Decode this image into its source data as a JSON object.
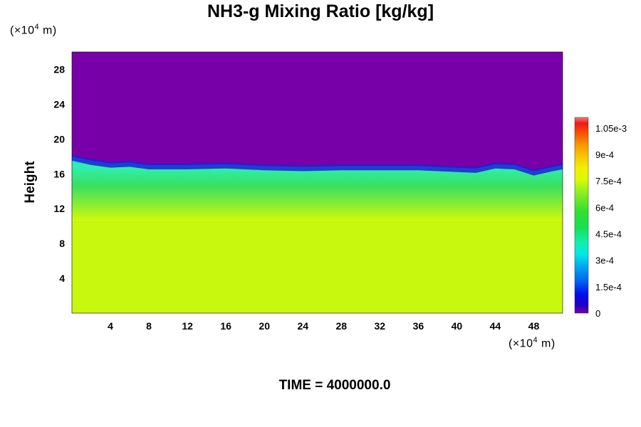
{
  "chart_data": {
    "type": "heatmap",
    "title": "NH3-g Mixing Ratio [kg/kg]",
    "ylabel": "Height",
    "xlabel": "",
    "x_unit_prefix": "(×10",
    "x_unit_exp": "4",
    "x_unit_suffix": " m)",
    "y_unit_prefix": "(×10",
    "y_unit_exp": "4",
    "y_unit_suffix": " m)",
    "xlim": [
      0,
      51
    ],
    "ylim": [
      0,
      30
    ],
    "x_ticks": [
      4,
      8,
      12,
      16,
      20,
      24,
      28,
      32,
      36,
      40,
      44,
      48
    ],
    "y_ticks": [
      4,
      8,
      12,
      16,
      20,
      24,
      28
    ],
    "colorbar": {
      "range": [
        0,
        0.00111
      ],
      "tick_values": [
        0,
        0.00015,
        0.0003,
        0.00045,
        0.0006,
        0.00075,
        0.0009,
        0.00105
      ],
      "tick_labels": [
        "0",
        "1.5e-4",
        "3e-4",
        "4.5e-4",
        "6e-4",
        "7.5e-4",
        "9e-4",
        "1.05e-3"
      ]
    },
    "fields": {
      "lower_region_value": 0.00074,
      "lower_region_top_height": 10.5,
      "mixed_layer_value": 0.00048,
      "upper_region_value": 0,
      "tropopause_height_profile": {
        "x": [
          0,
          2,
          4,
          6,
          8,
          12,
          16,
          20,
          24,
          28,
          32,
          36,
          40,
          42,
          44,
          46,
          48,
          50,
          51
        ],
        "height": [
          18.0,
          17.5,
          17.2,
          17.3,
          17.0,
          17.0,
          17.1,
          16.9,
          16.8,
          16.9,
          16.9,
          16.9,
          16.7,
          16.6,
          17.1,
          17.0,
          16.3,
          16.8,
          17.0
        ]
      }
    },
    "time_label": "TIME = 4000000.0"
  }
}
